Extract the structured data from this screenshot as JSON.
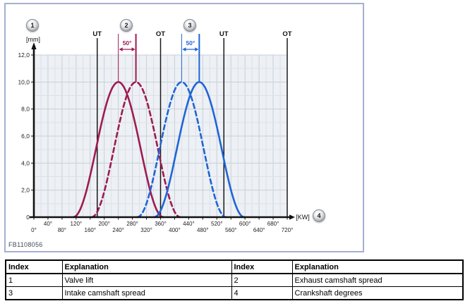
{
  "figure": {
    "code": "FB1108056",
    "callouts": {
      "c1": "1",
      "c2": "2",
      "c3": "3",
      "c4": "4"
    }
  },
  "chart_data": {
    "type": "line",
    "title": "",
    "ylabel": "[mm]",
    "xlabel": "[KW]",
    "x_range": [
      0,
      720
    ],
    "x_tick_step": 40,
    "x_tick_suffix": "°",
    "y_range": [
      0,
      12
    ],
    "y_ticks": [
      {
        "v": 0,
        "label": "0"
      },
      {
        "v": 2,
        "label": "2,0"
      },
      {
        "v": 4,
        "label": "4,0"
      },
      {
        "v": 6,
        "label": "6,0"
      },
      {
        "v": 8,
        "label": "8,0"
      },
      {
        "v": 10,
        "label": "10,0"
      },
      {
        "v": 12,
        "label": "12,0"
      }
    ],
    "grid": true,
    "dead_center_marks": [
      {
        "deg": 180,
        "label": "UT"
      },
      {
        "deg": 360,
        "label": "OT"
      },
      {
        "deg": 540,
        "label": "UT"
      },
      {
        "deg": 720,
        "label": "OT"
      }
    ],
    "series": [
      {
        "name": "exhaust-lift-base",
        "color": "#9e1b51",
        "style": "solid",
        "peak_deg": 240,
        "max_lift_mm": 10,
        "base_half_width_deg": 128
      },
      {
        "name": "exhaust-lift-shifted",
        "color": "#9e1b51",
        "style": "dashed",
        "peak_deg": 290,
        "max_lift_mm": 10,
        "base_half_width_deg": 126
      },
      {
        "name": "intake-lift-shifted",
        "color": "#1f65d6",
        "style": "dashed",
        "peak_deg": 420,
        "max_lift_mm": 10,
        "base_half_width_deg": 126
      },
      {
        "name": "intake-lift-base",
        "color": "#1f65d6",
        "style": "solid",
        "peak_deg": 470,
        "max_lift_mm": 10,
        "base_half_width_deg": 128
      }
    ],
    "spread_annotations": [
      {
        "callout": "2",
        "label": "50°",
        "from_deg": 240,
        "to_deg": 290,
        "color": "#9e1b51"
      },
      {
        "callout": "3",
        "label": "50°",
        "from_deg": 420,
        "to_deg": 470,
        "color": "#1f65d6"
      }
    ]
  },
  "legend_table": {
    "headers": [
      "Index",
      "Explanation",
      "Index",
      "Explanation"
    ],
    "rows": [
      [
        "1",
        "Valve lift",
        "2",
        "Exhaust camshaft spread"
      ],
      [
        "3",
        "Intake camshaft spread",
        "4",
        "Crankshaft degrees"
      ]
    ]
  }
}
